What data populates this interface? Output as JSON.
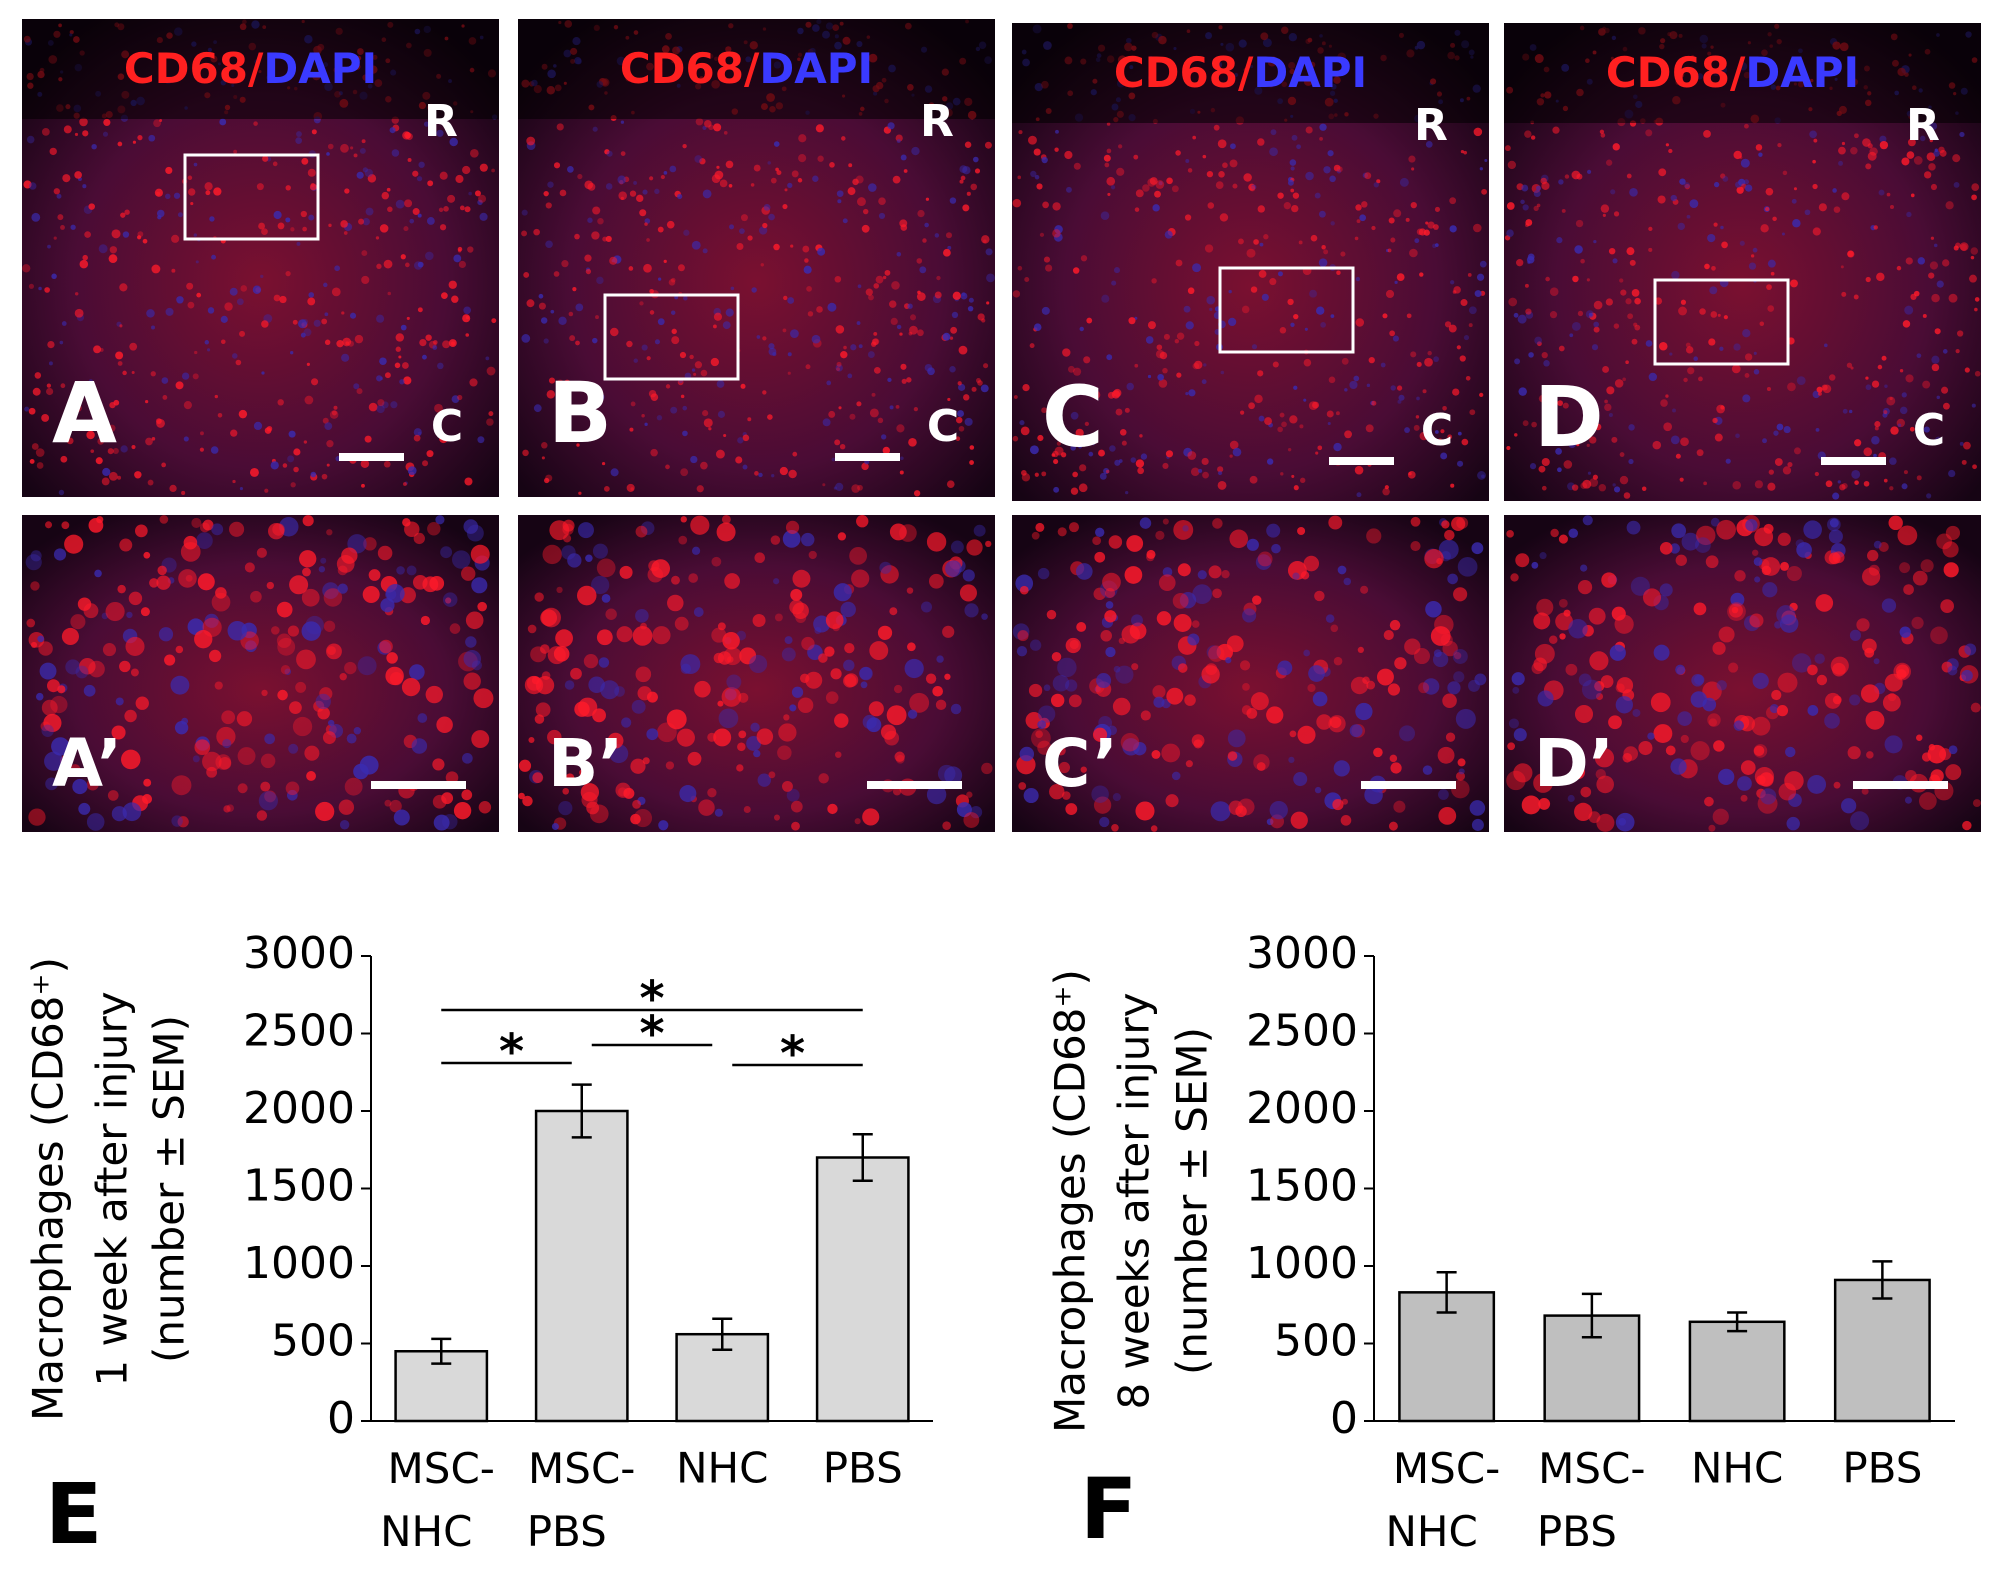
{
  "panels": [
    {
      "label": "A",
      "zoom_label": "A’",
      "stain_red": "CD68/",
      "stain_blue": "DAPI",
      "top_marker": "R",
      "bottom_marker": "C"
    },
    {
      "label": "B",
      "zoom_label": "B’",
      "stain_red": "CD68/",
      "stain_blue": "DAPI",
      "top_marker": "R",
      "bottom_marker": "C"
    },
    {
      "label": "C",
      "zoom_label": "C’",
      "stain_red": "CD68/",
      "stain_blue": "DAPI",
      "top_marker": "R",
      "bottom_marker": "C"
    },
    {
      "label": "D",
      "zoom_label": "D’",
      "stain_red": "CD68/",
      "stain_blue": "DAPI",
      "top_marker": "R",
      "bottom_marker": "C"
    }
  ],
  "chart_data": [
    {
      "type": "bar",
      "panel_label": "E",
      "ylabel": [
        "Macrophages (CD68⁺)",
        "1 week after injury",
        "(number ± SEM)"
      ],
      "categories": [
        "MSC-NHC",
        "MSC-PBS",
        "NHC",
        "PBS"
      ],
      "series": [
        {
          "color": "#d9d9d9",
          "values": [
            450,
            2000,
            560,
            1700
          ],
          "errors": [
            80,
            170,
            100,
            150
          ]
        }
      ],
      "ylim": [
        0,
        3000
      ],
      "yticks": [
        0,
        500,
        1000,
        1500,
        2000,
        2500,
        3000
      ],
      "annotations": [
        {
          "text": "*",
          "pair": [
            0,
            3
          ]
        },
        {
          "text": "*",
          "pair": [
            0,
            1
          ]
        },
        {
          "text": "*",
          "pair": [
            1,
            2
          ]
        },
        {
          "text": "*",
          "pair": [
            2,
            3
          ]
        }
      ]
    },
    {
      "type": "bar",
      "panel_label": "F",
      "ylabel": [
        "Macrophages (CD68⁺)",
        "8 weeks after injury",
        "(number ± SEM)"
      ],
      "categories": [
        "MSC-NHC",
        "MSC-PBS",
        "NHC",
        "PBS"
      ],
      "series": [
        {
          "color": "#bfbfbf",
          "values": [
            830,
            680,
            640,
            910
          ],
          "errors": [
            130,
            140,
            60,
            120
          ]
        }
      ],
      "ylim": [
        0,
        3000
      ],
      "yticks": [
        0,
        500,
        1000,
        1500,
        2000,
        2500,
        3000
      ]
    }
  ]
}
